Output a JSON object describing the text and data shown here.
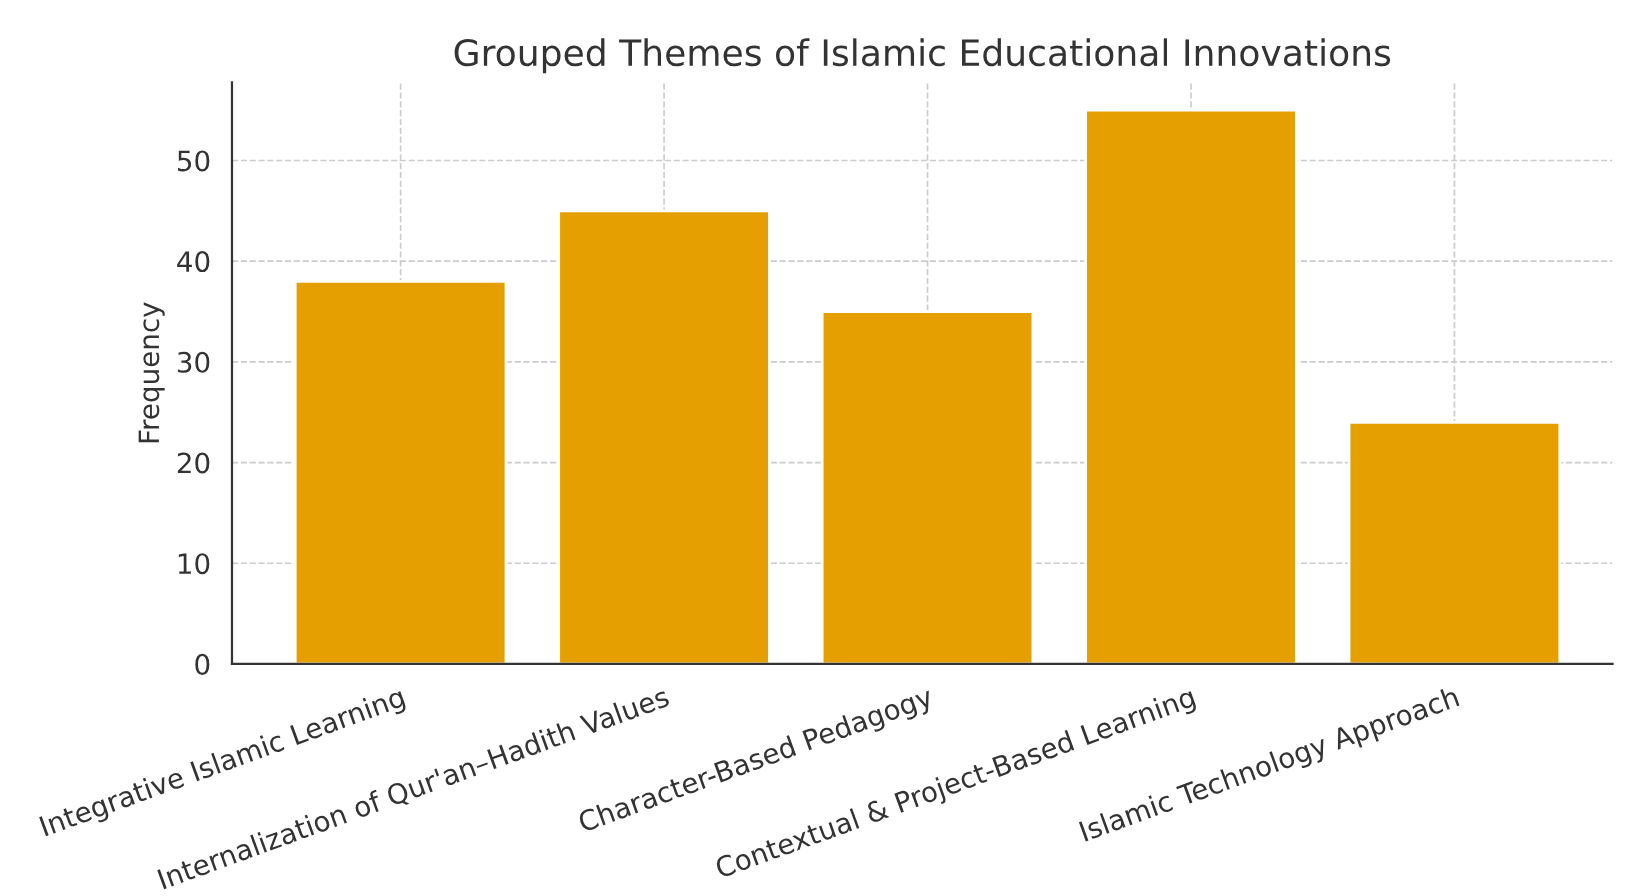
{
  "chart_data": {
    "type": "bar",
    "title": "Grouped Themes of Islamic Educational Innovations",
    "ylabel": "Frequency",
    "categories": [
      "Integrative Islamic Learning",
      "Internalization of Qur'an–Hadith Values",
      "Character-Based Pedagogy",
      "Contextual & Project-Based Learning",
      "Islamic Technology Approach"
    ],
    "values": [
      38,
      45,
      35,
      55,
      24
    ],
    "color": "#e69f00",
    "ylim": [
      0,
      57.75
    ],
    "yticks": [
      0,
      10,
      20,
      30,
      40,
      50
    ],
    "grid": true
  }
}
